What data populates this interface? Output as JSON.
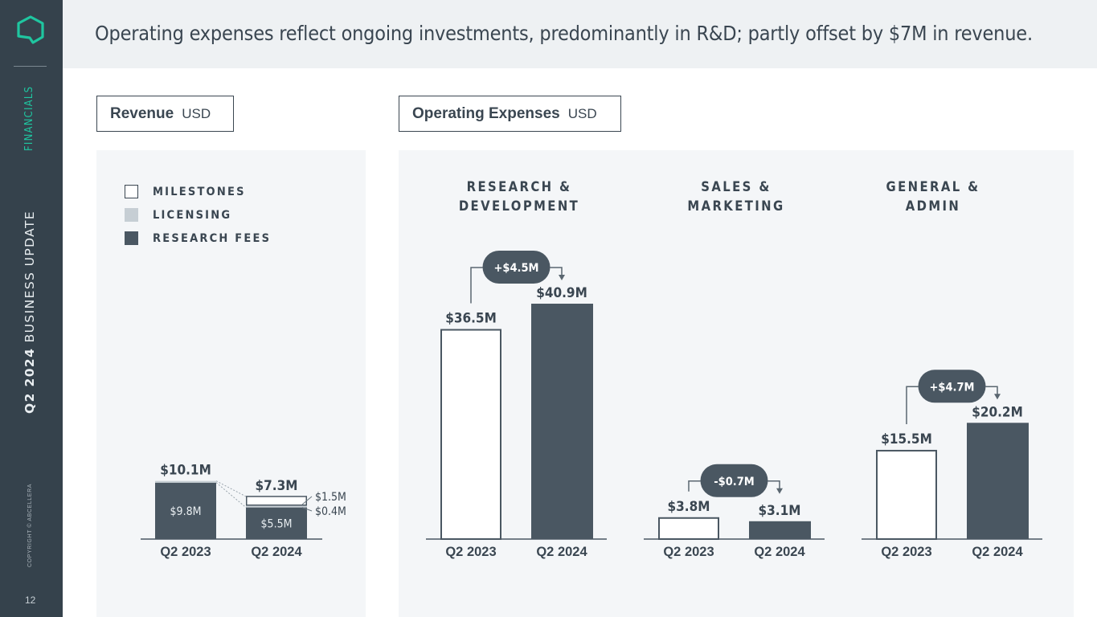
{
  "sidebar": {
    "section": "FINANCIALS",
    "title_bold": "Q2 2024",
    "title_rest": " BUSINESS UPDATE",
    "copyright": "COPYRIGHT © ABCELLERA",
    "page_number": "12",
    "logo_icon": "hexagon-speech-logo"
  },
  "header": {
    "headline": "Operating expenses reflect ongoing investments, predominantly in R&D; partly offset by $7M in revenue."
  },
  "revenue_section": {
    "title": "Revenue",
    "unit": "USD"
  },
  "opex_section": {
    "title": "Operating Expenses",
    "unit": "USD"
  },
  "colors": {
    "dark": "#4a5762",
    "light": "#c6ced4",
    "white": "#ffffff",
    "outline": "#4a5762",
    "accent": "#1fc6a0",
    "sidebar": "#35424c"
  },
  "chart_data": [
    {
      "id": "revenue",
      "type": "bar",
      "stacked": true,
      "title": "Revenue",
      "unit": "USD",
      "categories": [
        "Q2 2023",
        "Q2 2024"
      ],
      "legend": [
        "MILESTONES",
        "LICENSING",
        "RESEARCH FEES"
      ],
      "legend_position": "top-left",
      "series": [
        {
          "name": "RESEARCH FEES",
          "values": [
            9.8,
            5.5
          ]
        },
        {
          "name": "LICENSING",
          "values": [
            0.3,
            0.4
          ]
        },
        {
          "name": "MILESTONES",
          "values": [
            0.0,
            1.5
          ]
        }
      ],
      "totals": [
        "$10.1M",
        "$7.3M"
      ],
      "segment_labels": {
        "research_fees": [
          "$9.8M",
          "$5.5M"
        ],
        "licensing_q2_2024": "$0.4M",
        "milestones_q2_2024": "$1.5M"
      },
      "ylim": [
        0,
        41
      ]
    },
    {
      "id": "opex",
      "type": "bar",
      "title": "Operating Expenses",
      "unit": "USD",
      "ylim": [
        0,
        41
      ],
      "groups": [
        {
          "title_line1": "RESEARCH &",
          "title_line2": "DEVELOPMENT",
          "categories": [
            "Q2 2023",
            "Q2 2024"
          ],
          "values": [
            36.5,
            40.9
          ],
          "labels": [
            "$36.5M",
            "$40.9M"
          ],
          "change": "+$4.5M"
        },
        {
          "title_line1": "SALES &",
          "title_line2": "MARKETING",
          "categories": [
            "Q2 2023",
            "Q2 2024"
          ],
          "values": [
            3.8,
            3.1
          ],
          "labels": [
            "$3.8M",
            "$3.1M"
          ],
          "change": "-$0.7M"
        },
        {
          "title_line1": "GENERAL &",
          "title_line2": "ADMIN",
          "categories": [
            "Q2 2023",
            "Q2 2024"
          ],
          "values": [
            15.5,
            20.2
          ],
          "labels": [
            "$15.5M",
            "$20.2M"
          ],
          "change": "+$4.7M"
        }
      ]
    }
  ]
}
